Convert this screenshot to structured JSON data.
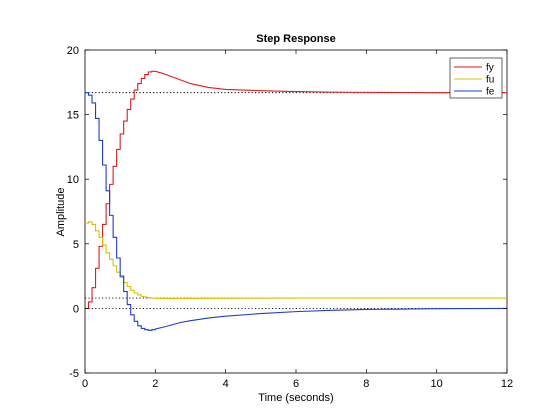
{
  "chart_data": {
    "type": "line",
    "title": "Step Response",
    "xlabel": "Time (seconds)",
    "ylabel": "Amplitude",
    "xlim": [
      0,
      12
    ],
    "ylim": [
      -5,
      20
    ],
    "xticks": [
      "0",
      "2",
      "4",
      "6",
      "8",
      "10",
      "12"
    ],
    "yticks": [
      "-5",
      "0",
      "5",
      "10",
      "15",
      "20"
    ],
    "grid": false,
    "legend_position": "top-right",
    "reference_lines": [
      16.7,
      0.8,
      0
    ],
    "series": [
      {
        "name": "fy",
        "color": "#e31a1c",
        "x": [
          0,
          0.1,
          0.2,
          0.3,
          0.4,
          0.5,
          0.6,
          0.7,
          0.8,
          0.9,
          1.0,
          1.1,
          1.2,
          1.3,
          1.4,
          1.5,
          1.6,
          1.7,
          1.8,
          1.9,
          2.0,
          2.2,
          2.5,
          3.0,
          3.5,
          4.0,
          5.0,
          6.0,
          7.0,
          8.0,
          9.0,
          10.0,
          11.0,
          12.0
        ],
        "y": [
          0,
          0.5,
          1.6,
          3.1,
          4.8,
          6.5,
          8.1,
          9.6,
          11.0,
          12.3,
          13.5,
          14.5,
          15.4,
          16.2,
          16.9,
          17.4,
          17.8,
          18.1,
          18.3,
          18.35,
          18.35,
          18.2,
          17.9,
          17.4,
          17.1,
          16.95,
          16.85,
          16.78,
          16.74,
          16.72,
          16.71,
          16.7,
          16.7,
          16.7
        ]
      },
      {
        "name": "fu",
        "color": "#d7c400",
        "x": [
          0,
          0.1,
          0.2,
          0.3,
          0.4,
          0.5,
          0.6,
          0.7,
          0.8,
          0.9,
          1.0,
          1.1,
          1.2,
          1.3,
          1.4,
          1.5,
          1.6,
          1.8,
          2.0,
          2.5,
          3.0,
          4.0,
          6.0,
          8.0,
          10.0,
          12.0
        ],
        "y": [
          6.6,
          6.7,
          6.5,
          6.0,
          5.5,
          4.9,
          4.3,
          3.8,
          3.3,
          2.8,
          2.4,
          2.0,
          1.7,
          1.4,
          1.2,
          1.05,
          0.95,
          0.85,
          0.78,
          0.76,
          0.77,
          0.78,
          0.8,
          0.8,
          0.8,
          0.8
        ]
      },
      {
        "name": "fe",
        "color": "#1f3bd6",
        "x": [
          0,
          0.1,
          0.2,
          0.3,
          0.4,
          0.5,
          0.6,
          0.7,
          0.8,
          0.9,
          1.0,
          1.1,
          1.2,
          1.3,
          1.4,
          1.5,
          1.6,
          1.7,
          1.8,
          1.9,
          2.0,
          2.3,
          2.7,
          3.0,
          3.5,
          4.0,
          5.0,
          6.0,
          7.0,
          8.0,
          10.0,
          12.0
        ],
        "y": [
          16.7,
          16.5,
          15.9,
          14.7,
          13.0,
          11.1,
          9.1,
          7.2,
          5.5,
          3.9,
          2.5,
          1.3,
          0.3,
          -0.5,
          -1.0,
          -1.35,
          -1.55,
          -1.65,
          -1.7,
          -1.65,
          -1.6,
          -1.4,
          -1.1,
          -0.95,
          -0.75,
          -0.6,
          -0.4,
          -0.25,
          -0.15,
          -0.08,
          -0.02,
          0
        ]
      }
    ]
  }
}
